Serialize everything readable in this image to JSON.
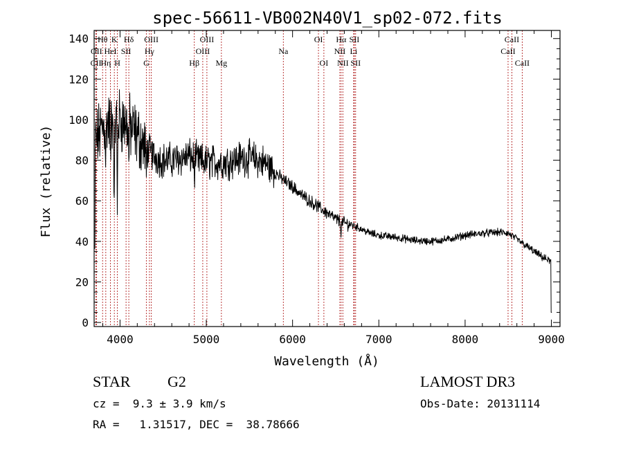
{
  "chart_data": {
    "type": "line",
    "title": "spec-56611-VB002N40V1_sp02-072.fits",
    "xlabel": "Wavelength (Å)",
    "ylabel": "Flux (relative)",
    "xlim": [
      3700,
      9100
    ],
    "ylim": [
      -2,
      144
    ],
    "xticks": [
      4000,
      5000,
      6000,
      7000,
      8000,
      9000
    ],
    "yticks": [
      0,
      20,
      40,
      60,
      80,
      100,
      120,
      140
    ],
    "xtick_labels": [
      "4000",
      "5000",
      "6000",
      "7000",
      "8000",
      "9000"
    ],
    "ytick_labels": [
      "0",
      "20",
      "40",
      "60",
      "80",
      "100",
      "120",
      "140"
    ],
    "continuum": [
      [
        3700,
        88
      ],
      [
        3800,
        96
      ],
      [
        3900,
        100
      ],
      [
        4000,
        100
      ],
      [
        4100,
        97
      ],
      [
        4200,
        92
      ],
      [
        4300,
        86
      ],
      [
        4400,
        82
      ],
      [
        4500,
        80
      ],
      [
        4600,
        80
      ],
      [
        4700,
        81
      ],
      [
        4800,
        82
      ],
      [
        4900,
        80
      ],
      [
        5000,
        79
      ],
      [
        5100,
        79
      ],
      [
        5200,
        79
      ],
      [
        5300,
        80
      ],
      [
        5400,
        81
      ],
      [
        5500,
        81
      ],
      [
        5600,
        80
      ],
      [
        5700,
        78
      ],
      [
        5800,
        74
      ],
      [
        5900,
        70
      ],
      [
        6000,
        67
      ],
      [
        6100,
        63
      ],
      [
        6200,
        60
      ],
      [
        6300,
        57
      ],
      [
        6400,
        54
      ],
      [
        6500,
        51
      ],
      [
        6600,
        49
      ],
      [
        6700,
        48
      ],
      [
        6800,
        46
      ],
      [
        6900,
        44
      ],
      [
        7000,
        43
      ],
      [
        7200,
        42
      ],
      [
        7400,
        40.5
      ],
      [
        7600,
        40
      ],
      [
        7800,
        41
      ],
      [
        8000,
        43
      ],
      [
        8200,
        44
      ],
      [
        8400,
        44.5
      ],
      [
        8500,
        44
      ],
      [
        8600,
        41
      ],
      [
        8700,
        38
      ],
      [
        8800,
        35
      ],
      [
        8900,
        32
      ],
      [
        9000,
        30
      ]
    ],
    "spectral_lines": [
      {
        "label": "Hθ",
        "wavelength": 3798,
        "row": 1
      },
      {
        "label": "OII",
        "wavelength": 3727,
        "row": 2
      },
      {
        "label": "CII",
        "wavelength": 3720,
        "row": 3
      },
      {
        "label": "Hη",
        "wavelength": 3835,
        "row": 3
      },
      {
        "label": "HeI",
        "wavelength": 3889,
        "row": 2
      },
      {
        "label": "K",
        "wavelength": 3934,
        "row": 1
      },
      {
        "label": "H",
        "wavelength": 3969,
        "row": 3
      },
      {
        "label": "SII",
        "wavelength": 4070,
        "row": 2
      },
      {
        "label": "Hδ",
        "wavelength": 4102,
        "row": 1
      },
      {
        "label": "OIII",
        "wavelength": 4363,
        "row": 1
      },
      {
        "label": "Hγ",
        "wavelength": 4341,
        "row": 2
      },
      {
        "label": "G",
        "wavelength": 4305,
        "row": 3
      },
      {
        "label": "Hβ",
        "wavelength": 4861,
        "row": 3
      },
      {
        "label": "OIII",
        "wavelength": 5007,
        "row": 1
      },
      {
        "label": "OIII",
        "wavelength": 4959,
        "row": 2
      },
      {
        "label": "Mg",
        "wavelength": 5175,
        "row": 3
      },
      {
        "label": "Na",
        "wavelength": 5893,
        "row": 2
      },
      {
        "label": "OI",
        "wavelength": 6300,
        "row": 1
      },
      {
        "label": "OI",
        "wavelength": 6363,
        "row": 3
      },
      {
        "label": "Hα",
        "wavelength": 6563,
        "row": 1
      },
      {
        "label": "NII",
        "wavelength": 6548,
        "row": 2
      },
      {
        "label": "NII",
        "wavelength": 6583,
        "row": 3
      },
      {
        "label": "SII",
        "wavelength": 6716,
        "row": 1
      },
      {
        "label": "Li",
        "wavelength": 6708,
        "row": 2
      },
      {
        "label": "SII",
        "wavelength": 6731,
        "row": 3
      },
      {
        "label": "CaII",
        "wavelength": 8542,
        "row": 1
      },
      {
        "label": "CaII",
        "wavelength": 8498,
        "row": 2
      },
      {
        "label": "CaII",
        "wavelength": 8662,
        "row": 3
      }
    ],
    "line_color": "#000000",
    "marker_color": "#b22222"
  },
  "info": {
    "object_class": "STAR",
    "subclass": "G2",
    "survey": "LAMOST DR3",
    "redshift_text": "cz =  9.3 ± 3.9 km/s",
    "obs_date_text": "Obs-Date: 20131114",
    "coords_text": "RA =   1.31517, DEC =  38.78666"
  }
}
